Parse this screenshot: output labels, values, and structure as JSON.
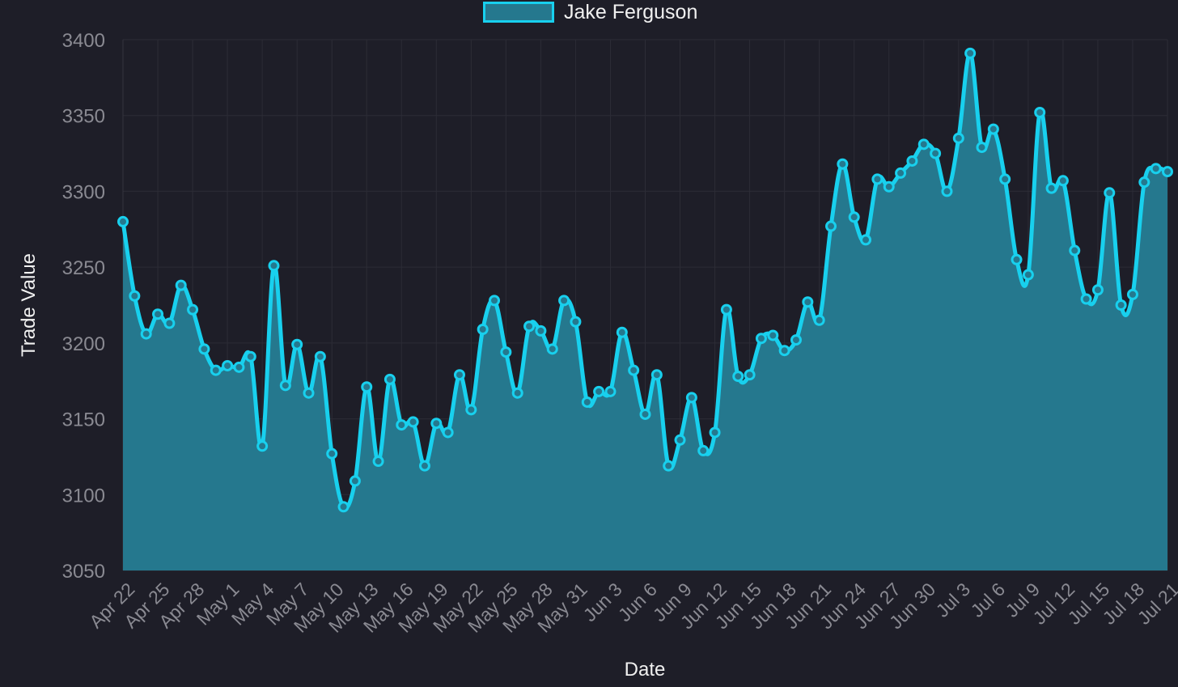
{
  "chart_data": {
    "type": "area",
    "title": "",
    "xlabel": "Date",
    "ylabel": "Trade Value",
    "ylim": [
      3050,
      3400
    ],
    "yticks": [
      3050,
      3100,
      3150,
      3200,
      3250,
      3300,
      3350,
      3400
    ],
    "grid": true,
    "legend_position": "top-center",
    "x_tick_labels": [
      "Apr 22",
      "Apr 25",
      "Apr 28",
      "May 1",
      "May 4",
      "May 7",
      "May 10",
      "May 13",
      "May 16",
      "May 19",
      "May 22",
      "May 25",
      "May 28",
      "May 31",
      "Jun 3",
      "Jun 6",
      "Jun 9",
      "Jun 12",
      "Jun 15",
      "Jun 18",
      "Jun 21",
      "Jun 24",
      "Jun 27",
      "Jun 30",
      "Jul 3",
      "Jul 6",
      "Jul 9",
      "Jul 12",
      "Jul 15",
      "Jul 18",
      "Jul 21"
    ],
    "series": [
      {
        "name": "Jake Ferguson",
        "line_color": "#18d0ee",
        "fill_color": "#25788e",
        "x_start": "Apr 22",
        "values": [
          3280,
          3231,
          3206,
          3219,
          3213,
          3238,
          3222,
          3196,
          3182,
          3185,
          3184,
          3191,
          3132,
          3251,
          3172,
          3199,
          3167,
          3191,
          3127,
          3092,
          3109,
          3171,
          3122,
          3176,
          3146,
          3148,
          3119,
          3147,
          3141,
          3179,
          3156,
          3209,
          3228,
          3194,
          3167,
          3211,
          3208,
          3196,
          3228,
          3214,
          3161,
          3168,
          3168,
          3207,
          3182,
          3153,
          3179,
          3119,
          3136,
          3164,
          3129,
          3141,
          3222,
          3178,
          3179,
          3203,
          3205,
          3195,
          3202,
          3227,
          3215,
          3277,
          3318,
          3283,
          3268,
          3308,
          3303,
          3312,
          3320,
          3331,
          3325,
          3300,
          3335,
          3391,
          3329,
          3341,
          3308,
          3255,
          3245,
          3352,
          3302,
          3307,
          3261,
          3229,
          3235,
          3299,
          3225,
          3232,
          3306,
          3315,
          3313
        ]
      }
    ]
  },
  "colors": {
    "background": "#1e1e28",
    "grid": "#2c2c36",
    "tick_text": "#8a8a92",
    "title_text": "#f0f0f0"
  }
}
